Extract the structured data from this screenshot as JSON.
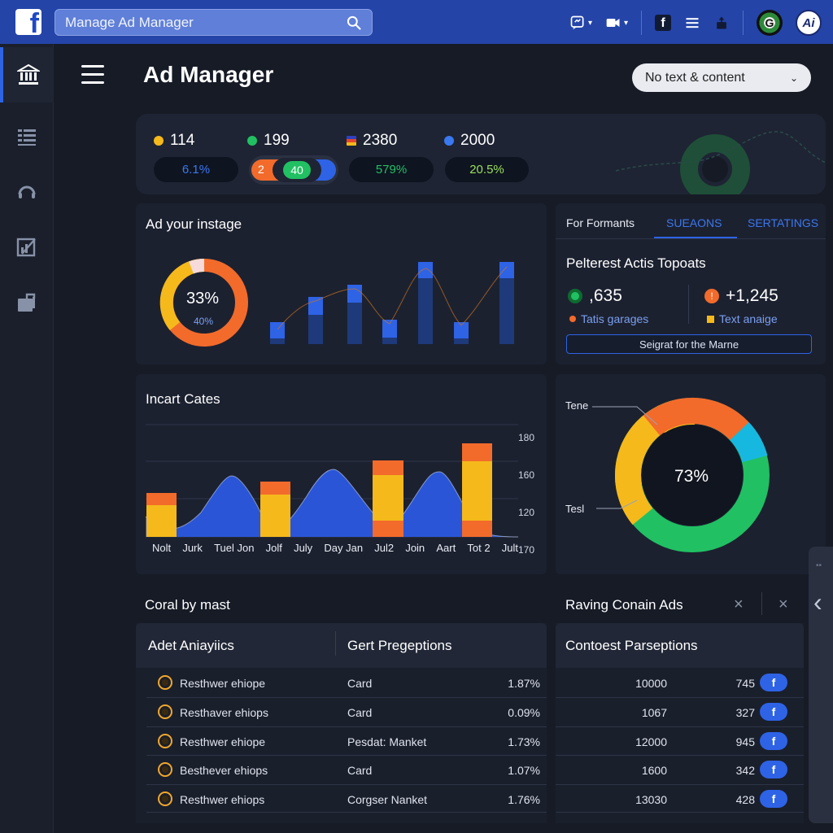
{
  "topbar": {
    "logo_letter": "f",
    "search_text": "Manage Ad Manager",
    "badge_letter": "f",
    "avatar_g": "G",
    "avatar_ai": "Ai"
  },
  "header": {
    "title": "Ad Manager",
    "filter_label": "No text & content"
  },
  "stats": [
    {
      "value": "114",
      "color": "#f5b91b",
      "pill": "6.1%",
      "pill_color": "#3a78f0"
    },
    {
      "value": "199",
      "color": "#21c063",
      "toggle_left": "2",
      "toggle_right": "40"
    },
    {
      "value": "2380",
      "color": "#e8452b",
      "pill": "579%",
      "pill_color": "#21c063"
    },
    {
      "value": "2000",
      "color": "#3a78f0",
      "pill": "20.5%",
      "pill_color": "#9be05a"
    }
  ],
  "insight": {
    "title": "Ad your instage",
    "donut_value": "33%",
    "donut_sub": "40%"
  },
  "tabs": [
    "For Formants",
    "SUEAONS",
    "SERTATINGS"
  ],
  "topposts": {
    "title": "Pelterest Actis Topoats",
    "kpi1": ",635",
    "kpi2": "+1,245",
    "sub1": "Tatis garages",
    "sub2": "Text anaige",
    "button": "Seigrat for the Marne"
  },
  "incart": {
    "title": "Incart Cates",
    "x_labels": [
      "Nolt",
      "Jurk",
      "Tuel Jon",
      "Jolf",
      "July",
      "Day Jan",
      "Jul2",
      "Join",
      "Aart",
      "Tot 2",
      "Jult"
    ],
    "y_labels": [
      "180",
      "160",
      "120",
      "170"
    ]
  },
  "ring": {
    "value": "73%",
    "label_top": "Tene",
    "label_bottom": "Tesl"
  },
  "table_left": {
    "section_title": "Coral by mast",
    "col1": "Adet Aniayiics",
    "col2": "Gert Pregeptions",
    "rows": [
      {
        "name": "Resthwer ehiope",
        "type": "Card",
        "pct": "1.87%"
      },
      {
        "name": "Resthaver ehiops",
        "type": "Card",
        "pct": "0.09%"
      },
      {
        "name": "Resthwer ehiope",
        "type": "Pesdat: Manket",
        "pct": "1.73%"
      },
      {
        "name": "Besthever ehiops",
        "type": "Card",
        "pct": "1.07%"
      },
      {
        "name": "Resthwer ehiops",
        "type": "Corgser Nanket",
        "pct": "1.76%"
      }
    ]
  },
  "table_right": {
    "section_title": "Raving Conain Ads",
    "col1": "Contoest Parseptions",
    "rows": [
      {
        "a": "10000",
        "b": "745",
        "f": "f"
      },
      {
        "a": "1067",
        "b": "327",
        "f": "f"
      },
      {
        "a": "12000",
        "b": "945",
        "f": "f"
      },
      {
        "a": "1600",
        "b": "342",
        "f": "f"
      },
      {
        "a": "13030",
        "b": "428",
        "f": "f"
      }
    ]
  },
  "close_icons": [
    "×",
    "×"
  ],
  "side_tab": {
    "dots": "••",
    "chevron": "‹"
  }
}
